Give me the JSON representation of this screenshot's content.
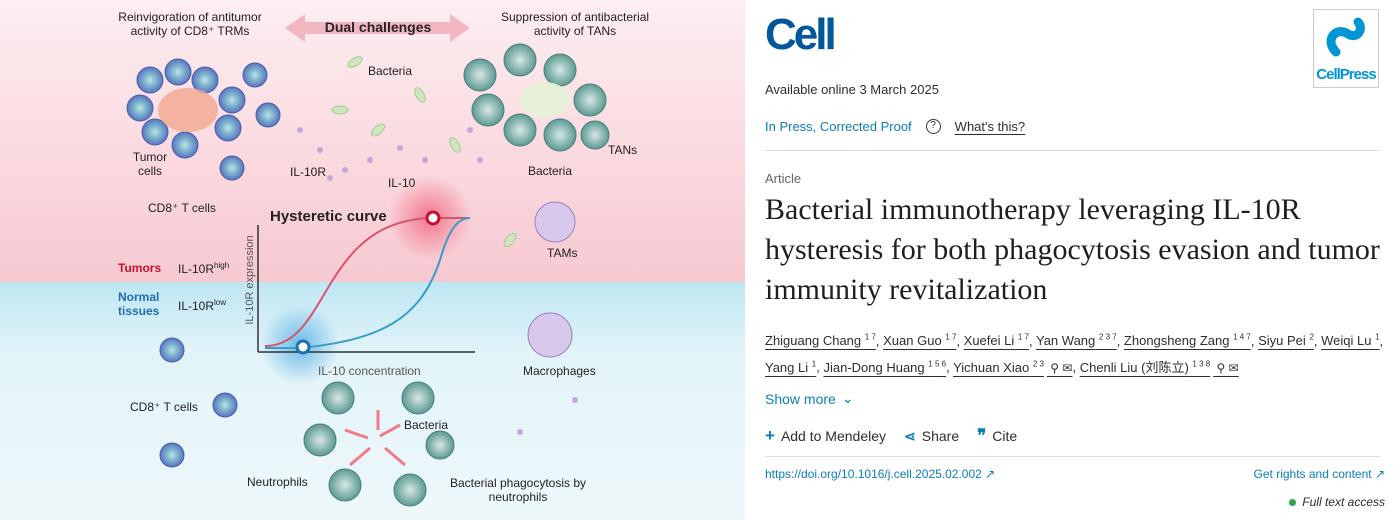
{
  "figure": {
    "top_left_title": "Reinvigoration of antitumor activity of CD8⁺ TRMs",
    "dual": "Dual challenges",
    "top_right_title": "Suppression of antibacterial activity of TANs",
    "bacteria": "Bacteria",
    "tumor_cells": "Tumor cells",
    "il10r": "IL-10R",
    "il10": "IL-10",
    "cd8_top": "CD8⁺ T cells",
    "bacteria2": "Bacteria",
    "tans": "TANs",
    "tams": "TAMs",
    "hysteretic": "Hysteretic curve",
    "yaxis": "IL-10R expression",
    "xaxis": "IL-10 concentration",
    "tumors": "Tumors",
    "tumors_il": "IL-10R",
    "tumors_sup": "high",
    "normal": "Normal tissues",
    "normal_il": "IL-10R",
    "normal_sup": "low",
    "macrophages": "Macrophages",
    "cd8_bottom": "CD8⁺ T cells",
    "bacteria3": "Bacteria",
    "neutrophils": "Neutrophils",
    "phago": "Bacterial phagocytosis by neutrophils",
    "colors": {
      "tumor_bg": "#fde3e8",
      "normal_bg": "#dcf0f6",
      "red": "#c8102e",
      "blue": "#2a8ab8"
    }
  },
  "journal": {
    "name": "Cell",
    "publisher": "CellPress"
  },
  "available": "Available online 3 March 2025",
  "status": "In Press, Corrected Proof",
  "whats_this": "What's this?",
  "article_type": "Article",
  "title": "Bacterial immunotherapy leveraging IL-10R hysteresis for both phagocytosis evasion and tumor immunity revitalization",
  "authors": [
    {
      "name": "Zhiguang Chang",
      "aff": "1 7"
    },
    {
      "name": "Xuan Guo",
      "aff": "1 7"
    },
    {
      "name": "Xuefei Li",
      "aff": "1 7"
    },
    {
      "name": "Yan Wang",
      "aff": "2 3 7"
    },
    {
      "name": "Zhongsheng Zang",
      "aff": "1 4 7"
    },
    {
      "name": "Siyu Pei",
      "aff": "2"
    },
    {
      "name": "Weiqi Lu",
      "aff": "1"
    },
    {
      "name": "Yang Li",
      "aff": "1"
    },
    {
      "name": "Jian-Dong Huang",
      "aff": "1 5 6"
    },
    {
      "name": "Yichuan Xiao",
      "aff": "2 3"
    },
    {
      "name": "Chenli Liu (刘陈立)",
      "aff": "1 3 8"
    }
  ],
  "show_more": "Show more",
  "actions": {
    "mendeley": "Add to Mendeley",
    "share": "Share",
    "cite": "Cite"
  },
  "doi": "https://doi.org/10.1016/j.cell.2025.02.002",
  "rights": "Get rights and content",
  "access": "Full text access"
}
